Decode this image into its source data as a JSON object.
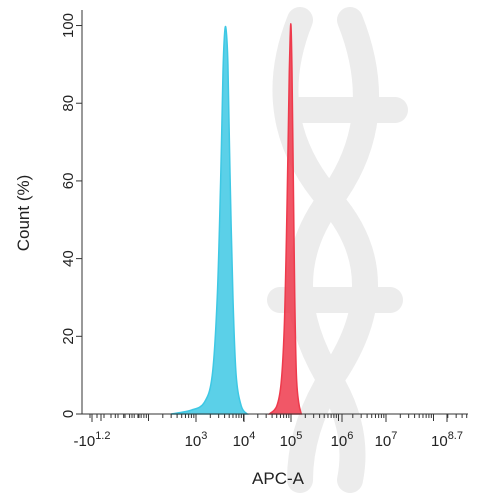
{
  "chart_data": {
    "type": "area",
    "xlabel": "APC-A",
    "ylabel": "Count (%)",
    "x_scale": "log",
    "xlim": [
      -15.85,
      501187
    ],
    "ylim": [
      0,
      104
    ],
    "y_ticks": [
      0,
      20,
      40,
      60,
      80,
      100
    ],
    "y_tick_labels": [
      "0",
      "20",
      "40",
      "60",
      "80",
      "100"
    ],
    "x_ticks": [
      {
        "base": "-10",
        "exp": "1.2"
      },
      {
        "base": "10",
        "exp": "3"
      },
      {
        "base": "10",
        "exp": "4"
      },
      {
        "base": "10",
        "exp": "5"
      },
      {
        "base": "10",
        "exp": "6"
      },
      {
        "base": "10",
        "exp": "7"
      },
      {
        "base": "10",
        "exp": "8.7"
      }
    ],
    "grid": false,
    "legend": "none",
    "series": [
      {
        "color": "#3ec8e4",
        "x": [
          300,
          800,
          1500,
          2200,
          2800,
          3300,
          3700,
          4000,
          4300,
          4700,
          5200,
          6000,
          7000,
          9000,
          12000
        ],
        "y": [
          0,
          1,
          3,
          10,
          30,
          60,
          88,
          98,
          99,
          90,
          62,
          30,
          10,
          2,
          0
        ]
      },
      {
        "color": "#ee3a4c",
        "x": [
          35000,
          50000,
          62000,
          72000,
          80000,
          87000,
          92000,
          96000,
          100000,
          105000,
          112000,
          120000,
          130000,
          145000,
          165000
        ],
        "y": [
          0,
          2,
          8,
          22,
          45,
          70,
          88,
          97,
          100,
          88,
          60,
          30,
          10,
          3,
          0
        ]
      }
    ]
  }
}
